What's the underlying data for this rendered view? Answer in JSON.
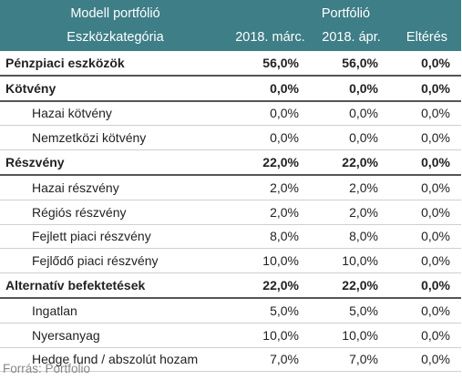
{
  "header": {
    "row1_left": "Modell portfólió",
    "row1_right": "Portfólió",
    "row2_left": "Eszközkategória",
    "col_march": "2018. márc.",
    "col_april": "2018. ápr.",
    "col_diff": "Eltérés"
  },
  "rows": [
    {
      "name": "Pénzpiaci eszközök",
      "march": "56,0%",
      "april": "56,0%",
      "diff": "0,0%",
      "group": true
    },
    {
      "name": "Kötvény",
      "march": "0,0%",
      "april": "0,0%",
      "diff": "0,0%",
      "group": true
    },
    {
      "name": "Hazai kötvény",
      "march": "0,0%",
      "april": "0,0%",
      "diff": "0,0%",
      "group": false
    },
    {
      "name": "Nemzetközi kötvény",
      "march": "0,0%",
      "april": "0,0%",
      "diff": "0,0%",
      "group": false
    },
    {
      "name": "Részvény",
      "march": "22,0%",
      "april": "22,0%",
      "diff": "0,0%",
      "group": true
    },
    {
      "name": "Hazai részvény",
      "march": "2,0%",
      "april": "2,0%",
      "diff": "0,0%",
      "group": false
    },
    {
      "name": "Régiós részvény",
      "march": "2,0%",
      "april": "2,0%",
      "diff": "0,0%",
      "group": false
    },
    {
      "name": "Fejlett piaci részvény",
      "march": "8,0%",
      "april": "8,0%",
      "diff": "0,0%",
      "group": false
    },
    {
      "name": "Fejlődő piaci részvény",
      "march": "10,0%",
      "april": "10,0%",
      "diff": "0,0%",
      "group": false
    },
    {
      "name": "Alternatív befektetések",
      "march": "22,0%",
      "april": "22,0%",
      "diff": "0,0%",
      "group": true
    },
    {
      "name": "Ingatlan",
      "march": "5,0%",
      "april": "5,0%",
      "diff": "0,0%",
      "group": false
    },
    {
      "name": "Nyersanyag",
      "march": "10,0%",
      "april": "10,0%",
      "diff": "0,0%",
      "group": false
    },
    {
      "name": "Hedge fund / abszolút hozam",
      "march": "7,0%",
      "april": "7,0%",
      "diff": "0,0%",
      "group": false
    }
  ],
  "source": "Forrás: Portfolio",
  "colors": {
    "header_bg": "#3d7e87",
    "header_text": "#ffffff"
  }
}
